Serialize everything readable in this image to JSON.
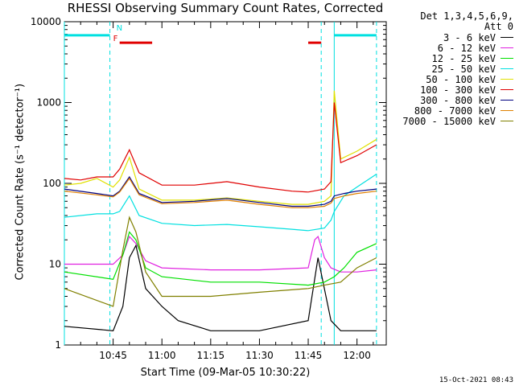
{
  "stamp": "15-Oct-2021 08:43",
  "chart_data": {
    "type": "line",
    "title": "RHESSI Observing Summary Count Rates, Corrected",
    "xlabel": "Start Time (09-Mar-05 10:30:22)",
    "ylabel": "Corrected Count Rate (s⁻¹ detector⁻¹)",
    "yscale": "log",
    "ylim": [
      1,
      10000
    ],
    "xlim": [
      "10:30",
      "12:09"
    ],
    "x_ticks": [
      "10:45",
      "11:00",
      "11:15",
      "11:30",
      "11:45",
      "12:00"
    ],
    "y_ticks": [
      "1",
      "10",
      "100",
      "1000",
      "10000"
    ],
    "legend_header": [
      "Det 1,3,4,5,6,9,",
      "Att 0"
    ],
    "legend_position": "right",
    "series": [
      {
        "name": "3 - 6 keV",
        "color": "#000000",
        "x": [
          "10:30",
          "10:45",
          "10:48",
          "10:50",
          "10:52",
          "10:55",
          "11:00",
          "11:05",
          "11:15",
          "11:30",
          "11:45",
          "11:48",
          "11:52",
          "11:55",
          "12:00",
          "12:06"
        ],
        "y": [
          1.7,
          1.5,
          3,
          12,
          17,
          5,
          3,
          2,
          1.5,
          1.5,
          2,
          12,
          2,
          1.5,
          1.5,
          1.5
        ]
      },
      {
        "name": "6 - 12 keV",
        "color": "#e020e0",
        "x": [
          "10:30",
          "10:45",
          "10:48",
          "10:50",
          "10:52",
          "10:55",
          "11:00",
          "11:15",
          "11:30",
          "11:45",
          "11:47",
          "11:48",
          "11:50",
          "11:52",
          "11:55",
          "12:00",
          "12:06"
        ],
        "y": [
          10,
          10,
          13,
          22,
          18,
          11,
          9,
          8.5,
          8.5,
          9,
          20,
          22,
          12,
          9,
          8,
          8,
          8.5
        ]
      },
      {
        "name": "12 - 25 keV",
        "color": "#00e000",
        "x": [
          "10:30",
          "10:45",
          "10:48",
          "10:50",
          "10:52",
          "10:55",
          "11:00",
          "11:15",
          "11:30",
          "11:45",
          "11:50",
          "11:53",
          "11:56",
          "12:00",
          "12:06"
        ],
        "y": [
          8,
          6.5,
          13,
          25,
          20,
          9,
          7,
          6,
          6,
          5.5,
          6,
          7,
          9,
          14,
          18
        ]
      },
      {
        "name": "25 - 50 keV",
        "color": "#00e0e0",
        "x": [
          "10:30",
          "10:40",
          "10:45",
          "10:47",
          "10:50",
          "10:53",
          "11:00",
          "11:10",
          "11:20",
          "11:30",
          "11:40",
          "11:45",
          "11:50",
          "11:52",
          "11:53",
          "11:56",
          "12:00",
          "12:06"
        ],
        "y": [
          38,
          42,
          42,
          45,
          70,
          40,
          32,
          30,
          31,
          29,
          27,
          26,
          28,
          35,
          45,
          70,
          90,
          130
        ]
      },
      {
        "name": "50 - 100 keV",
        "color": "#e0e000",
        "x": [
          "10:30",
          "10:35",
          "10:40",
          "10:45",
          "10:47",
          "10:50",
          "10:53",
          "11:00",
          "11:10",
          "11:20",
          "11:30",
          "11:40",
          "11:45",
          "11:50",
          "11:52",
          "11:53",
          "11:55",
          "12:00",
          "12:06"
        ],
        "y": [
          95,
          100,
          115,
          90,
          110,
          210,
          85,
          62,
          62,
          66,
          60,
          55,
          55,
          60,
          70,
          1400,
          200,
          250,
          350
        ]
      },
      {
        "name": "100 - 300 keV",
        "color": "#e00000",
        "x": [
          "10:30",
          "10:35",
          "10:40",
          "10:45",
          "10:47",
          "10:50",
          "10:53",
          "11:00",
          "11:10",
          "11:20",
          "11:30",
          "11:40",
          "11:45",
          "11:50",
          "11:52",
          "11:53",
          "11:55",
          "12:00",
          "12:06"
        ],
        "y": [
          115,
          110,
          120,
          120,
          150,
          260,
          135,
          95,
          95,
          105,
          90,
          80,
          78,
          85,
          105,
          1000,
          180,
          220,
          300
        ]
      },
      {
        "name": "300 - 800 keV",
        "color": "#000080",
        "x": [
          "10:30",
          "10:40",
          "10:45",
          "10:47",
          "10:50",
          "10:53",
          "11:00",
          "11:10",
          "11:20",
          "11:30",
          "11:40",
          "11:45",
          "11:50",
          "11:52",
          "11:53",
          "11:56",
          "12:00",
          "12:06"
        ],
        "y": [
          85,
          75,
          70,
          80,
          120,
          75,
          58,
          60,
          65,
          58,
          52,
          52,
          55,
          60,
          70,
          75,
          80,
          85
        ]
      },
      {
        "name": "800 - 7000 keV",
        "color": "#e08000",
        "x": [
          "10:30",
          "10:40",
          "10:45",
          "10:47",
          "10:50",
          "10:53",
          "11:00",
          "11:10",
          "11:20",
          "11:30",
          "11:40",
          "11:45",
          "11:50",
          "11:52",
          "11:53",
          "11:56",
          "12:00",
          "12:06"
        ],
        "y": [
          80,
          72,
          68,
          78,
          115,
          72,
          56,
          58,
          62,
          55,
          50,
          50,
          52,
          57,
          65,
          70,
          75,
          80
        ]
      },
      {
        "name": "7000 - 15000 keV",
        "color": "#808000",
        "x": [
          "10:30",
          "10:45",
          "10:48",
          "10:50",
          "10:52",
          "10:55",
          "11:00",
          "11:15",
          "11:30",
          "11:45",
          "11:50",
          "11:55",
          "12:00",
          "12:06"
        ],
        "y": [
          5,
          3,
          15,
          38,
          25,
          8,
          4,
          4,
          4.5,
          5,
          5.5,
          6,
          9,
          12
        ]
      }
    ],
    "annotations": {
      "cyan_bars": [
        [
          "10:30",
          "10:44"
        ],
        [
          "11:53",
          "12:06"
        ]
      ],
      "cyan_bar_value": 6800,
      "red_bars": [
        [
          "10:47",
          "10:57"
        ],
        [
          "11:45",
          "11:49"
        ]
      ],
      "red_bar_value": 5500,
      "cyan_markers": [
        "10:30",
        "11:53"
      ],
      "cyan_dashed_markers": [
        "10:44",
        "11:49",
        "12:06"
      ],
      "labels": [
        {
          "text": "N",
          "x": "10:46",
          "y": 7800,
          "color": "#00e0e0"
        },
        {
          "text": "F",
          "x": "10:45",
          "y": 5800,
          "color": "#e00000"
        }
      ]
    }
  }
}
